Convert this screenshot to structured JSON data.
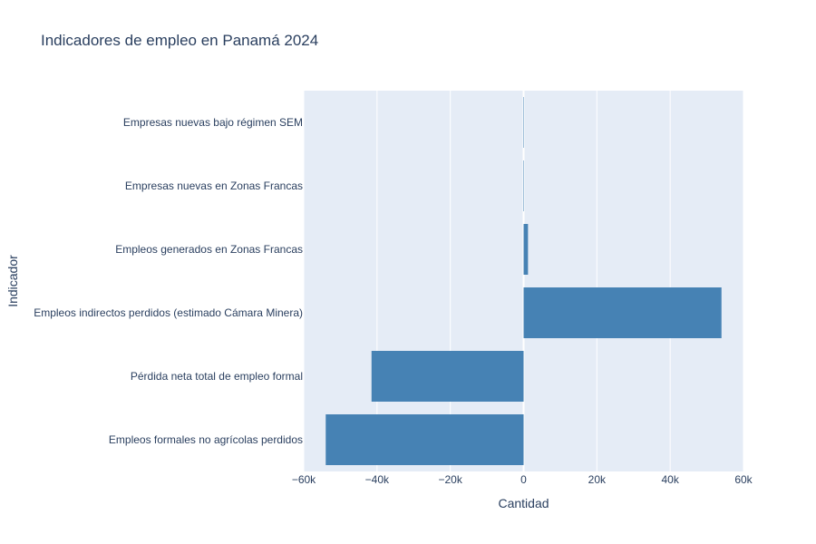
{
  "chart_data": {
    "type": "bar",
    "orientation": "horizontal",
    "title": "Indicadores de empleo en Panamá 2024",
    "xlabel": "Cantidad",
    "ylabel": "Indicador",
    "xlim": [
      -60000,
      60000
    ],
    "x_ticks": [
      -60000,
      -40000,
      -20000,
      0,
      20000,
      40000,
      60000
    ],
    "x_tick_labels": [
      "−60k",
      "−40k",
      "−20k",
      "0",
      "20k",
      "40k",
      "60k"
    ],
    "grid": true,
    "bar_color": "#4682b4",
    "plot_background": "#e5ecf6",
    "categories": [
      "Empleos formales no agrícolas perdidos",
      "Pérdida neta total de empleo formal",
      "Empleos indirectos perdidos (estimado Cámara Minera)",
      "Empleos generados en Zonas Francas",
      "Empresas nuevas en Zonas Francas",
      "Empresas nuevas bajo régimen SEM"
    ],
    "values": [
      -54000,
      -41500,
      54000,
      1200,
      60,
      30
    ]
  }
}
